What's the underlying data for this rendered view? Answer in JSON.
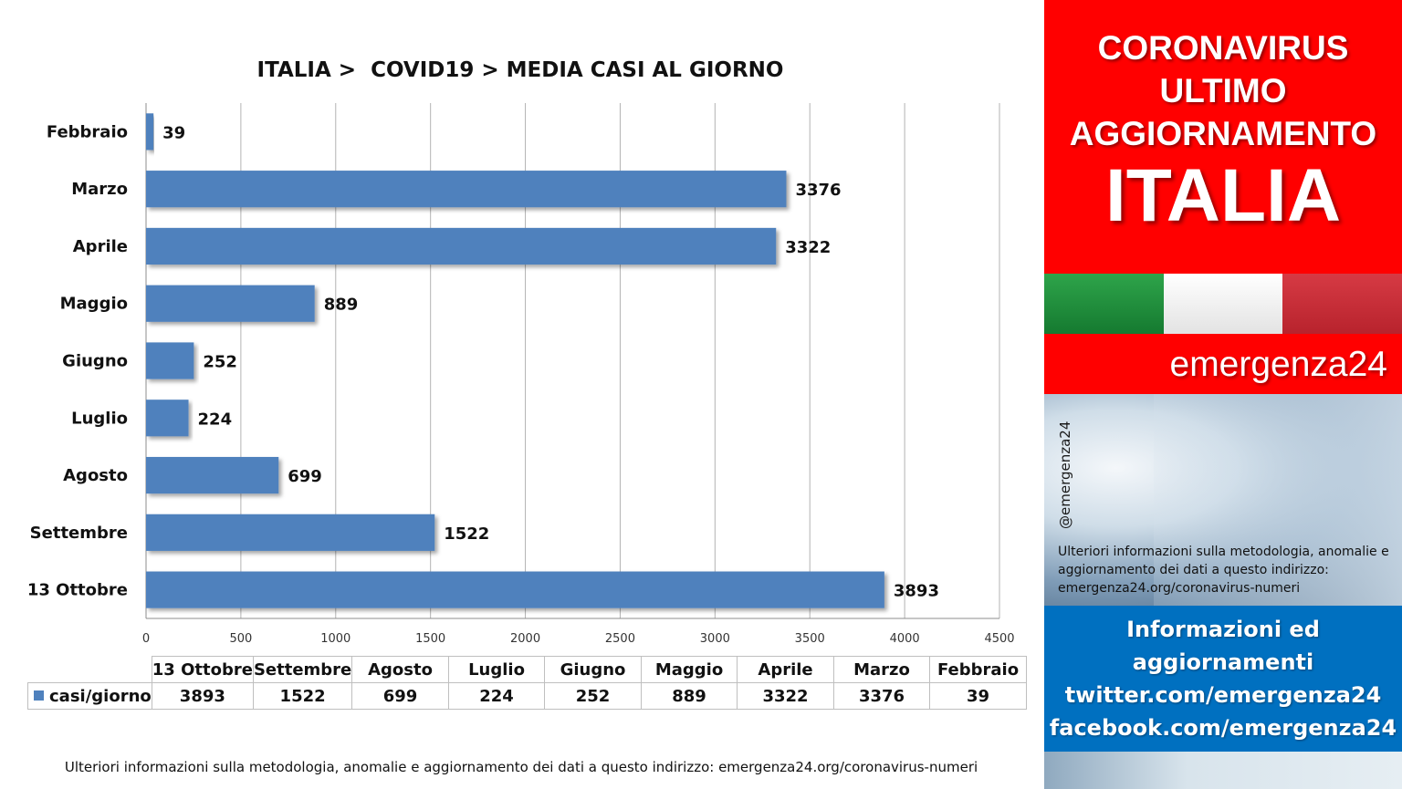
{
  "chart_data": {
    "type": "bar",
    "orientation": "horizontal",
    "title": "ITALIA >  COVID19 > MEDIA CASI AL GIORNO",
    "categories": [
      "Febbraio",
      "Marzo",
      "Aprile",
      "Maggio",
      "Giugno",
      "Luglio",
      "Agosto",
      "Settembre",
      "13 Ottobre"
    ],
    "series": [
      {
        "name": "casi/giorno",
        "values": [
          39,
          3376,
          3322,
          889,
          252,
          224,
          699,
          1522,
          3893
        ]
      }
    ],
    "xlim": [
      0,
      4500
    ],
    "xticks": [
      0,
      500,
      1000,
      1500,
      2000,
      2500,
      3000,
      3500,
      4000,
      4500
    ],
    "grid": true,
    "bar_color": "#4f81bd",
    "data_table": {
      "columns": [
        "13 Ottobre",
        "Settembre",
        "Agosto",
        "Luglio",
        "Giugno",
        "Maggio",
        "Aprile",
        "Marzo",
        "Febbraio"
      ],
      "row_label": "casi/giorno",
      "values": [
        3893,
        1522,
        699,
        224,
        252,
        889,
        3322,
        3376,
        39
      ]
    }
  },
  "footer_note": "Ulteriori informazioni sulla metodologia, anomalie e aggiornamento dei dati a questo indirizzo: emergenza24.org/coronavirus-numeri",
  "panel": {
    "header_lines": [
      "CORONAVIRUS",
      "ULTIMO",
      "AGGIORNAMENTO"
    ],
    "country": "ITALIA",
    "brand": "emergenza24",
    "handle": "@emergenza24",
    "note": "Ulteriori informazioni sulla metodologia, anomalie e aggiornamento dei dati a questo indirizzo: emergenza24.org/coronavirus-numeri",
    "info_lines": [
      "Informazioni ed",
      "aggiornamenti",
      "twitter.com/emergenza24",
      "facebook.com/emergenza24"
    ],
    "colors": {
      "red": "#ff0000",
      "blue": "#0070c0",
      "flag_green": "#1e8f3e",
      "flag_white": "#ffffff",
      "flag_red": "#c8262f"
    }
  }
}
